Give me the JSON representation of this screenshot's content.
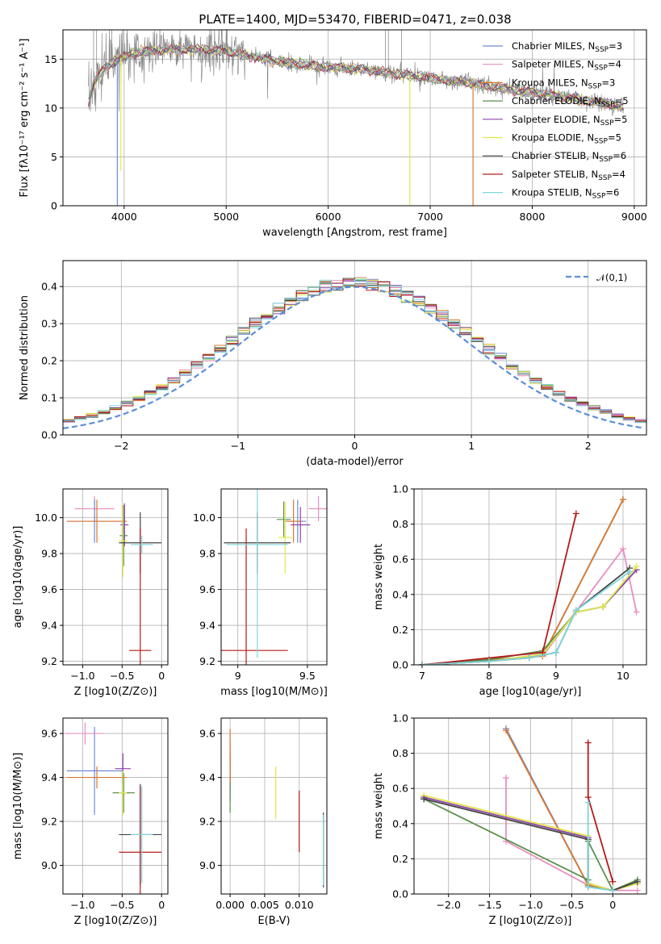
{
  "title": "PLATE=1400, MJD=53470, FIBERID=0471, z=0.038",
  "models": [
    {
      "name": "Chabrier MILES, N_SSP=3",
      "base": "Chabrier MILES, N",
      "sub": "SSP",
      "eq": "=3",
      "color": "#6b8cd6"
    },
    {
      "name": "Salpeter MILES, N_SSP=4",
      "base": "Salpeter MILES, N",
      "sub": "SSP",
      "eq": "=4",
      "color": "#e88fc0"
    },
    {
      "name": "Kroupa MILES, N_SSP=3",
      "base": "Kroupa MILES, N",
      "sub": "SSP",
      "eq": "=3",
      "color": "#d9782d"
    },
    {
      "name": "Chabrier ELODIE, N_SSP=5",
      "base": "Chabrier ELODIE, N",
      "sub": "SSP",
      "eq": "=5",
      "color": "#5a8f4e"
    },
    {
      "name": "Salpeter ELODIE, N_SSP=5",
      "base": "Salpeter ELODIE, N",
      "sub": "SSP",
      "eq": "=5",
      "color": "#8e44ad"
    },
    {
      "name": "Kroupa ELODIE, N_SSP=5",
      "base": "Kroupa ELODIE, N",
      "sub": "SSP",
      "eq": "=5",
      "color": "#e0e84a"
    },
    {
      "name": "Chabrier STELIB, N_SSP=6",
      "base": "Chabrier STELIB, N",
      "sub": "SSP",
      "eq": "=6",
      "color": "#444444"
    },
    {
      "name": "Salpeter STELIB, N_SSP=4",
      "base": "Salpeter STELIB, N",
      "sub": "SSP",
      "eq": "=4",
      "color": "#b31b1b"
    },
    {
      "name": "Kroupa STELIB, N_SSP=6",
      "base": "Kroupa STELIB, N",
      "sub": "SSP",
      "eq": "=6",
      "color": "#7fd6dc"
    }
  ],
  "chart_data": [
    {
      "id": "spectrum",
      "type": "line",
      "title": "PLATE=1400, MJD=53470, FIBERID=0471, z=0.038",
      "xlabel": "wavelength [Angstrom, rest frame]",
      "ylabel": "Flux [fλ10⁻¹⁷ erg cm⁻² s⁻¹ A⁻¹]",
      "xlim": [
        3400,
        9120
      ],
      "ylim": [
        0,
        18
      ],
      "xticks": [
        4000,
        5000,
        6000,
        7000,
        8000,
        9000
      ],
      "yticks": [
        0,
        5,
        10,
        15
      ],
      "data_color": "#808080",
      "continuum_x": [
        3650,
        3700,
        3800,
        3900,
        4000,
        4200,
        4500,
        4800,
        5000,
        5300,
        5600,
        6000,
        6300,
        6600,
        7000,
        7300,
        7600,
        8000,
        8400,
        8800,
        8900
      ],
      "continuum_y": [
        10.5,
        12.5,
        14.0,
        14.8,
        15.3,
        15.8,
        16.0,
        16.0,
        15.8,
        15.2,
        14.6,
        14.2,
        14.0,
        13.6,
        13.1,
        12.7,
        12.2,
        11.6,
        11.0,
        10.3,
        10.0
      ],
      "dips": [
        {
          "x": 3933,
          "model": "Chabrier MILES, N_SSP=3",
          "to": 0
        },
        {
          "x": 3968,
          "model": "Kroupa ELODIE, N_SSP=5",
          "to": 3.6
        },
        {
          "x": 6800,
          "model": "Kroupa ELODIE, N_SSP=5",
          "to": 0
        },
        {
          "x": 7420,
          "model": "Kroupa MILES, N_SSP=3",
          "to": 0
        }
      ],
      "legend": "top-right"
    },
    {
      "id": "residuals",
      "type": "line",
      "xlabel": "(data-model)/error",
      "ylabel": "Normed distribution",
      "xlim": [
        -2.5,
        2.5
      ],
      "ylim": [
        0,
        0.47
      ],
      "xticks": [
        -2,
        -1,
        0,
        1,
        2
      ],
      "yticks": [
        0.0,
        0.1,
        0.2,
        0.3,
        0.4
      ],
      "gaussian": {
        "label": "𝒩(0,1)",
        "color": "#5b8fd9"
      },
      "bin_width": 0.1,
      "legend": "top-right"
    },
    {
      "id": "age_vs_Z",
      "type": "scatter",
      "xlabel": "Z [log10(Z/Z⊙)]",
      "ylabel": "age [log10(age/yr)]",
      "xlim": [
        -1.25,
        0.08
      ],
      "ylim": [
        9.18,
        10.16
      ],
      "xticks": [
        -1.0,
        -0.5,
        0.0
      ],
      "yticks": [
        9.2,
        9.4,
        9.6,
        9.8,
        10.0
      ],
      "points": [
        {
          "x": -0.85,
          "y": 10.05,
          "xe": 0.25,
          "ye": 0.07,
          "model": "Salpeter MILES, N_SSP=4"
        },
        {
          "x": -0.85,
          "y": 9.98,
          "xe": 0.35,
          "ye": 0.12,
          "model": "Chabrier MILES, N_SSP=3"
        },
        {
          "x": -0.82,
          "y": 9.98,
          "xe": 0.38,
          "ye": 0.12,
          "model": "Kroupa MILES, N_SSP=3"
        },
        {
          "x": -0.48,
          "y": 9.9,
          "xe": 0.05,
          "ye": 0.17,
          "model": "Chabrier ELODIE, N_SSP=5"
        },
        {
          "x": -0.47,
          "y": 9.96,
          "xe": 0.05,
          "ye": 0.12,
          "model": "Salpeter ELODIE, N_SSP=5"
        },
        {
          "x": -0.49,
          "y": 9.87,
          "xe": 0.05,
          "ye": 0.2,
          "model": "Kroupa ELODIE, N_SSP=5"
        },
        {
          "x": -0.27,
          "y": 9.86,
          "xe": 0.27,
          "ye": 0.17,
          "model": "Chabrier STELIB, N_SSP=6"
        },
        {
          "x": -0.27,
          "y": 9.26,
          "xe": 0.14,
          "ye": 0.68,
          "model": "Salpeter STELIB, N_SSP=4"
        },
        {
          "x": -0.25,
          "y": 9.85,
          "xe": 0.14,
          "ye": 0.05,
          "model": "Kroupa STELIB, N_SSP=6"
        }
      ]
    },
    {
      "id": "age_vs_mass",
      "type": "scatter",
      "xlabel": "mass [log10(M/M⊙)]",
      "ylabel": "",
      "xlim": [
        8.88,
        9.64
      ],
      "ylim": [
        9.18,
        10.16
      ],
      "xticks": [
        9.0,
        9.5
      ],
      "yticks": [
        9.2,
        9.4,
        9.6,
        9.8,
        10.0
      ],
      "points": [
        {
          "x": 9.43,
          "y": 9.98,
          "xe": 0.06,
          "ye": 0.12,
          "model": "Chabrier MILES, N_SSP=3"
        },
        {
          "x": 9.58,
          "y": 10.05,
          "xe": 0.07,
          "ye": 0.07,
          "model": "Salpeter MILES, N_SSP=4"
        },
        {
          "x": 9.4,
          "y": 9.98,
          "xe": 0.06,
          "ye": 0.12,
          "model": "Kroupa MILES, N_SSP=3"
        },
        {
          "x": 9.33,
          "y": 9.99,
          "xe": 0.05,
          "ye": 0.1,
          "model": "Chabrier ELODIE, N_SSP=5"
        },
        {
          "x": 9.45,
          "y": 9.96,
          "xe": 0.07,
          "ye": 0.1,
          "model": "Salpeter ELODIE, N_SSP=5"
        },
        {
          "x": 9.34,
          "y": 9.89,
          "xe": 0.05,
          "ye": 0.2,
          "model": "Kroupa ELODIE, N_SSP=5"
        },
        {
          "x": 9.14,
          "y": 9.86,
          "xe": 0.24,
          "ye": 0.17,
          "model": "Chabrier STELIB, N_SSP=6"
        },
        {
          "x": 9.06,
          "y": 9.26,
          "xe": 0.3,
          "ye": 0.68,
          "model": "Salpeter STELIB, N_SSP=4"
        },
        {
          "x": 9.14,
          "y": 9.85,
          "xe": 0.22,
          "ye": 0.63,
          "model": "Kroupa STELIB, N_SSP=6"
        }
      ]
    },
    {
      "id": "weight_vs_age",
      "type": "line",
      "xlabel": "age  [log10(age/yr)]",
      "ylabel": "mass weight",
      "xlim": [
        6.88,
        10.35
      ],
      "ylim": [
        0,
        1.0
      ],
      "xticks": [
        7,
        8,
        9,
        10
      ],
      "yticks": [
        0.0,
        0.2,
        0.4,
        0.6,
        0.8,
        1.0
      ],
      "series": [
        {
          "model": "Chabrier MILES, N_SSP=3",
          "x": [
            7.0,
            8.8,
            10.0
          ],
          "y": [
            0.0,
            0.05,
            0.94
          ]
        },
        {
          "model": "Salpeter MILES, N_SSP=4",
          "x": [
            7.0,
            8.8,
            10.0,
            10.2
          ],
          "y": [
            0.0,
            0.05,
            0.66,
            0.3
          ]
        },
        {
          "model": "Kroupa MILES, N_SSP=3",
          "x": [
            7.0,
            8.8,
            10.0
          ],
          "y": [
            0.0,
            0.05,
            0.94
          ]
        },
        {
          "model": "Chabrier ELODIE, N_SSP=5",
          "x": [
            7.0,
            8.0,
            8.8,
            9.3,
            9.7,
            10.2
          ],
          "y": [
            0.0,
            0.03,
            0.08,
            0.3,
            0.33,
            0.54
          ]
        },
        {
          "model": "Salpeter ELODIE, N_SSP=5",
          "x": [
            7.0,
            8.0,
            8.8,
            9.3,
            9.7,
            10.2
          ],
          "y": [
            0.0,
            0.02,
            0.06,
            0.3,
            0.33,
            0.54
          ]
        },
        {
          "model": "Kroupa ELODIE, N_SSP=5",
          "x": [
            7.0,
            8.0,
            8.8,
            9.3,
            9.7,
            10.2
          ],
          "y": [
            0.0,
            0.02,
            0.06,
            0.3,
            0.33,
            0.56
          ]
        },
        {
          "model": "Chabrier STELIB, N_SSP=6",
          "x": [
            7.0,
            8.0,
            8.6,
            9.0,
            9.3,
            10.1
          ],
          "y": [
            0.0,
            0.02,
            0.04,
            0.07,
            0.31,
            0.55
          ]
        },
        {
          "model": "Salpeter STELIB, N_SSP=4",
          "x": [
            7.0,
            8.8,
            9.3
          ],
          "y": [
            0.0,
            0.07,
            0.86
          ]
        },
        {
          "model": "Kroupa STELIB, N_SSP=6",
          "x": [
            7.0,
            8.0,
            8.6,
            9.0,
            9.3,
            10.1
          ],
          "y": [
            0.0,
            0.02,
            0.04,
            0.07,
            0.31,
            0.53
          ]
        }
      ]
    },
    {
      "id": "mass_vs_Z",
      "type": "scatter",
      "xlabel": "Z [log10(Z/Z⊙)]",
      "ylabel": "mass [log10(M/M⊙)]",
      "xlim": [
        -1.25,
        0.08
      ],
      "ylim": [
        8.87,
        9.67
      ],
      "xticks": [
        -1.0,
        -0.5,
        0.0
      ],
      "yticks": [
        9.0,
        9.2,
        9.4,
        9.6
      ],
      "points": [
        {
          "x": -0.85,
          "y": 9.43,
          "xe": 0.35,
          "ye": 0.2,
          "model": "Chabrier MILES, N_SSP=3"
        },
        {
          "x": -0.97,
          "y": 9.6,
          "xe": 0.25,
          "ye": 0.05,
          "model": "Salpeter MILES, N_SSP=4"
        },
        {
          "x": -0.82,
          "y": 9.4,
          "xe": 0.38,
          "ye": 0.05,
          "model": "Kroupa MILES, N_SSP=3"
        },
        {
          "x": -0.48,
          "y": 9.33,
          "xe": 0.14,
          "ye": 0.09,
          "model": "Chabrier ELODIE, N_SSP=5"
        },
        {
          "x": -0.49,
          "y": 9.44,
          "xe": 0.1,
          "ye": 0.07,
          "model": "Salpeter ELODIE, N_SSP=5"
        },
        {
          "x": -0.49,
          "y": 9.33,
          "xe": 0.05,
          "ye": 0.1,
          "model": "Kroupa ELODIE, N_SSP=5"
        },
        {
          "x": -0.27,
          "y": 9.14,
          "xe": 0.27,
          "ye": 0.23,
          "model": "Chabrier STELIB, N_SSP=6"
        },
        {
          "x": -0.27,
          "y": 9.06,
          "xe": 0.27,
          "ye": 0.3,
          "model": "Salpeter STELIB, N_SSP=4"
        },
        {
          "x": -0.25,
          "y": 9.14,
          "xe": 0.14,
          "ye": 0.22,
          "model": "Kroupa STELIB, N_SSP=6"
        }
      ]
    },
    {
      "id": "mass_vs_ebv",
      "type": "scatter",
      "xlabel": "E(B-V)",
      "ylabel": "",
      "xlim": [
        -0.0013,
        0.014
      ],
      "ylim": [
        8.87,
        9.67
      ],
      "xticks": [
        0.0,
        0.005,
        0.01
      ],
      "xticklabels": [
        "0.000",
        "0.005",
        "0.010"
      ],
      "yticks": [
        9.0,
        9.2,
        9.4,
        9.6
      ],
      "points": [
        {
          "x": 0.0,
          "y": 9.44,
          "ye": 0.13,
          "model": "Salpeter MILES, N_SSP=4"
        },
        {
          "x": 0.0,
          "y": 9.4,
          "ye": 0.11,
          "model": "Salpeter ELODIE, N_SSP=5"
        },
        {
          "x": 0.0,
          "y": 9.35,
          "ye": 0.11,
          "model": "Chabrier ELODIE, N_SSP=5"
        },
        {
          "x": 0.0,
          "y": 9.5,
          "ye": 0.12,
          "model": "Kroupa MILES, N_SSP=3"
        },
        {
          "x": 0.0066,
          "y": 9.33,
          "ye": 0.12,
          "model": "Kroupa ELODIE, N_SSP=5"
        },
        {
          "x": 0.01,
          "y": 9.2,
          "ye": 0.14,
          "model": "Salpeter STELIB, N_SSP=4"
        },
        {
          "x": 0.0135,
          "y": 9.07,
          "ye": 0.17,
          "model": "Chabrier STELIB, N_SSP=6"
        },
        {
          "x": 0.0135,
          "y": 9.07,
          "ye": 0.16,
          "model": "Kroupa STELIB, N_SSP=6"
        }
      ]
    },
    {
      "id": "weight_vs_Z",
      "type": "line",
      "xlabel": "Z [log10(Z/Z⊙)]",
      "ylabel": "mass weight",
      "xlim": [
        -2.42,
        0.41
      ],
      "ylim": [
        0,
        1.0
      ],
      "xticks": [
        -2.0,
        -1.5,
        -1.0,
        -0.5,
        0.0
      ],
      "yticks": [
        0.0,
        0.2,
        0.4,
        0.6,
        0.8,
        1.0
      ],
      "series": [
        {
          "model": "Chabrier MILES, N_SSP=3",
          "x": [
            -1.3,
            -0.3,
            0.0
          ],
          "y": [
            0.94,
            0.05,
            0.02
          ]
        },
        {
          "model": "Salpeter MILES, N_SSP=4",
          "x": [
            -1.3,
            -1.3,
            -0.3,
            0.0,
            0.3
          ],
          "y": [
            0.66,
            0.3,
            0.05,
            0.02,
            0.02
          ]
        },
        {
          "model": "Kroupa MILES, N_SSP=3",
          "x": [
            -1.3,
            -0.3,
            0.0
          ],
          "y": [
            0.93,
            0.05,
            0.02
          ]
        },
        {
          "model": "Chabrier ELODIE, N_SSP=5",
          "x": [
            -2.3,
            -0.3,
            -0.3,
            0.0,
            0.3
          ],
          "y": [
            0.54,
            0.08,
            0.3,
            0.02,
            0.08
          ]
        },
        {
          "model": "Salpeter ELODIE, N_SSP=5",
          "x": [
            -2.3,
            -0.3,
            -0.3,
            0.0,
            0.3
          ],
          "y": [
            0.55,
            0.32,
            0.06,
            0.02,
            0.06
          ]
        },
        {
          "model": "Kroupa ELODIE, N_SSP=5",
          "x": [
            -2.3,
            -0.3,
            -0.3,
            0.0,
            0.3
          ],
          "y": [
            0.56,
            0.33,
            0.06,
            0.02,
            0.06
          ]
        },
        {
          "model": "Chabrier STELIB, N_SSP=6",
          "x": [
            -2.3,
            -0.3,
            -0.3,
            0.0,
            0.3
          ],
          "y": [
            0.54,
            0.31,
            0.04,
            0.02,
            0.07
          ]
        },
        {
          "model": "Salpeter STELIB, N_SSP=4",
          "x": [
            -0.3,
            -0.3,
            0.0
          ],
          "y": [
            0.86,
            0.55,
            0.07
          ]
        },
        {
          "model": "Kroupa STELIB, N_SSP=6",
          "x": [
            -0.3,
            -0.3,
            0.0
          ],
          "y": [
            0.52,
            0.04,
            0.02
          ]
        }
      ]
    }
  ]
}
